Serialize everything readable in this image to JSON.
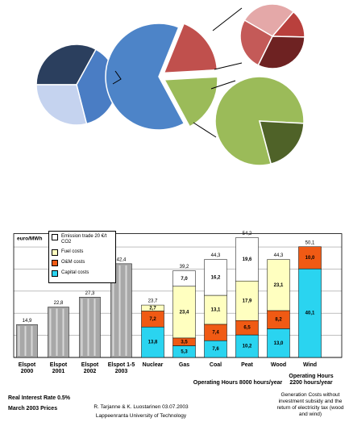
{
  "chart_data": [
    {
      "type": "pie",
      "values": [
        33,
        38,
        29
      ],
      "colors": [
        "#2b3f5e",
        "#4a7dc4",
        "#c5d3ef"
      ]
    },
    {
      "type": "pie",
      "values": [
        18,
        18,
        64
      ],
      "colors": [
        "#c0504d",
        "#9bbb59",
        "#4d84c8"
      ],
      "explode": [
        true,
        true,
        false
      ]
    },
    {
      "type": "pie",
      "values": [
        28,
        14,
        32,
        26
      ],
      "colors": [
        "#e4a8a8",
        "#b9403d",
        "#6e2222",
        "#c45a58"
      ]
    },
    {
      "type": "pie",
      "values": [
        80,
        20
      ],
      "colors": [
        "#9bbb59",
        "#4f6228"
      ]
    },
    {
      "type": "bar",
      "stacked": true,
      "ylabel": "euro/MWh",
      "categories": [
        "Elspot 2000",
        "Elspot 2001",
        "Elspot 2002",
        "Elspot 1-5 2003",
        "Nuclear",
        "Gas",
        "Coal",
        "Peat",
        "Wood",
        "Wind"
      ],
      "series": [
        {
          "color": "#a8a8a8",
          "values": [
            14.9,
            22.8,
            27.3,
            42.4,
            null,
            null,
            null,
            null,
            null,
            null
          ]
        },
        {
          "name": "Capital costs",
          "color": "#2ad4f0",
          "values": [
            null,
            null,
            null,
            null,
            13.8,
            5.3,
            7.6,
            10.2,
            13.0,
            40.1
          ],
          "value_labels": [
            null,
            null,
            null,
            null,
            "13,8",
            "5,3",
            "7,6",
            "10,2",
            "13,0",
            "40,1"
          ]
        },
        {
          "name": "O&M costs",
          "color": "#f05a14",
          "values": [
            null,
            null,
            null,
            null,
            7.2,
            3.5,
            7.4,
            6.5,
            8.2,
            10.0
          ],
          "value_labels": [
            null,
            null,
            null,
            null,
            "7,2",
            "3,5",
            "7,4",
            "6,5",
            "8,2",
            "10,0"
          ]
        },
        {
          "name": "Fuel costs",
          "color": "#ffffc0",
          "values": [
            null,
            null,
            null,
            null,
            2.7,
            23.4,
            13.1,
            17.9,
            23.1,
            null
          ],
          "value_labels": [
            null,
            null,
            null,
            null,
            "2,7",
            "23,4",
            "13,1",
            "17,9",
            "23,1",
            null
          ]
        },
        {
          "name": "Emission trade 20 €/t CO2",
          "color": "#ffffff",
          "values": [
            null,
            null,
            null,
            null,
            null,
            7.0,
            16.2,
            19.6,
            null,
            null
          ],
          "value_labels": [
            null,
            null,
            null,
            null,
            null,
            "7,0",
            "16,2",
            "19,6",
            null,
            null
          ]
        }
      ],
      "totals": {
        "values": [
          14.9,
          22.8,
          27.3,
          42.4,
          23.7,
          39.2,
          44.3,
          54.2,
          44.3,
          50.1
        ],
        "value_labels": [
          "14,9",
          "22,8",
          "27,3",
          "42,4",
          "23,7",
          "39,2",
          "44,3",
          "54,2",
          "44,3",
          "50,1"
        ]
      },
      "ylim": [
        0,
        56
      ],
      "yticks": [
        0,
        10,
        20,
        30,
        40,
        50
      ],
      "grid": true,
      "annotations": [
        "Operating Hours 8000 hours/year",
        "Operating Hours 2200 hours/year",
        "Generation Costs without investment subsidy and the return of electricity tax (wood and wind)",
        "Real Interest Rate 0.5%",
        "March 2003 Prices",
        "R. Tarjanne & K. Luostarinen 03.07.2003",
        "Lappeenranta University of Technology"
      ]
    }
  ]
}
